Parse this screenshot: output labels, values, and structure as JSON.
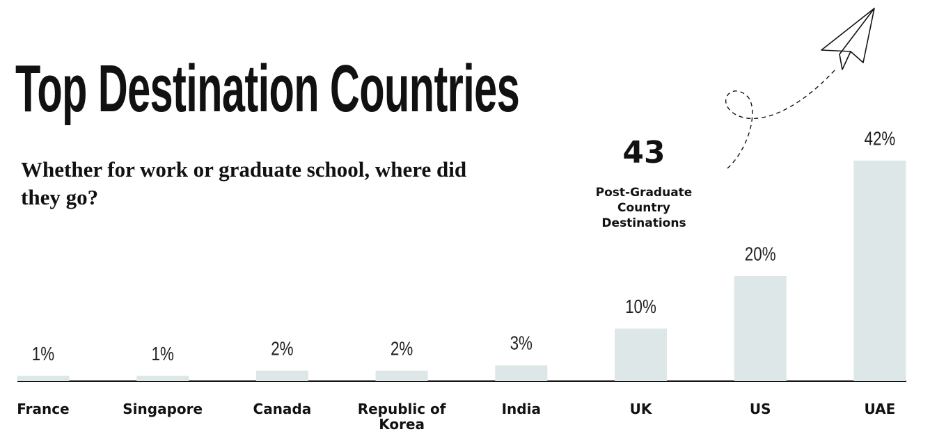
{
  "chart_data": {
    "type": "bar",
    "title": "Top Destination Countries",
    "subtitle": "Whether for work or graduate school, where did they go?",
    "annotation_value": 43,
    "annotation_label": "Post-Graduate Country Destinations",
    "categories": [
      "France",
      "Singapore",
      "Canada",
      "Republic of Korea",
      "India",
      "UK",
      "US",
      "UAE"
    ],
    "values": [
      1,
      1,
      2,
      2,
      3,
      10,
      20,
      42
    ],
    "value_labels": [
      "1%",
      "1%",
      "2%",
      "2%",
      "3%",
      "10%",
      "20%",
      "42%"
    ],
    "color": "#dde7e8"
  }
}
